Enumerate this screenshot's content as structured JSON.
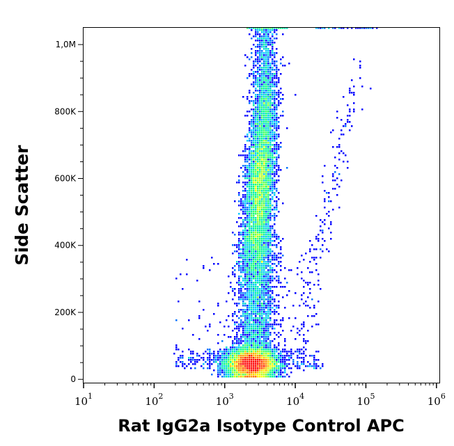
{
  "chart_data": {
    "type": "heatmap",
    "subtype": "flow-cytometry-density-dot-plot",
    "xlabel": "Rat IgG2a Isotype Control APC",
    "ylabel": "Side Scatter",
    "x_scale": "log",
    "xlim": [
      10,
      1100000
    ],
    "ylim": [
      -10000,
      1050000
    ],
    "x_ticks": [
      {
        "base": "10",
        "exp": "1",
        "value": 10
      },
      {
        "base": "10",
        "exp": "2",
        "value": 100
      },
      {
        "base": "10",
        "exp": "3",
        "value": 1000
      },
      {
        "base": "10",
        "exp": "4",
        "value": 10000
      },
      {
        "base": "10",
        "exp": "5",
        "value": 100000
      },
      {
        "base": "10",
        "exp": "6",
        "value": 1000000
      }
    ],
    "y_ticks": [
      {
        "label": "0",
        "value": 0
      },
      {
        "label": "200K",
        "value": 200000
      },
      {
        "label": "400K",
        "value": 400000
      },
      {
        "label": "600K",
        "value": 600000
      },
      {
        "label": "800K",
        "value": 800000
      },
      {
        "label": "1,0M",
        "value": 1000000
      }
    ],
    "color_scale": [
      "#0000ff",
      "#00c8ff",
      "#00ff80",
      "#ffff00",
      "#ff0000"
    ],
    "populations": [
      {
        "x_center": 2500,
        "y_center": 45000,
        "density": "highest"
      },
      {
        "x_center": 3500,
        "y_center": 580000,
        "density": "high"
      },
      {
        "x_center": 3200,
        "y_range": [
          80000,
          420000
        ],
        "density": "low"
      },
      {
        "x_range": [
          10000,
          100000
        ],
        "y_range": [
          100000,
          900000
        ],
        "density": "sparse"
      }
    ],
    "grid": false,
    "legend": "none"
  }
}
